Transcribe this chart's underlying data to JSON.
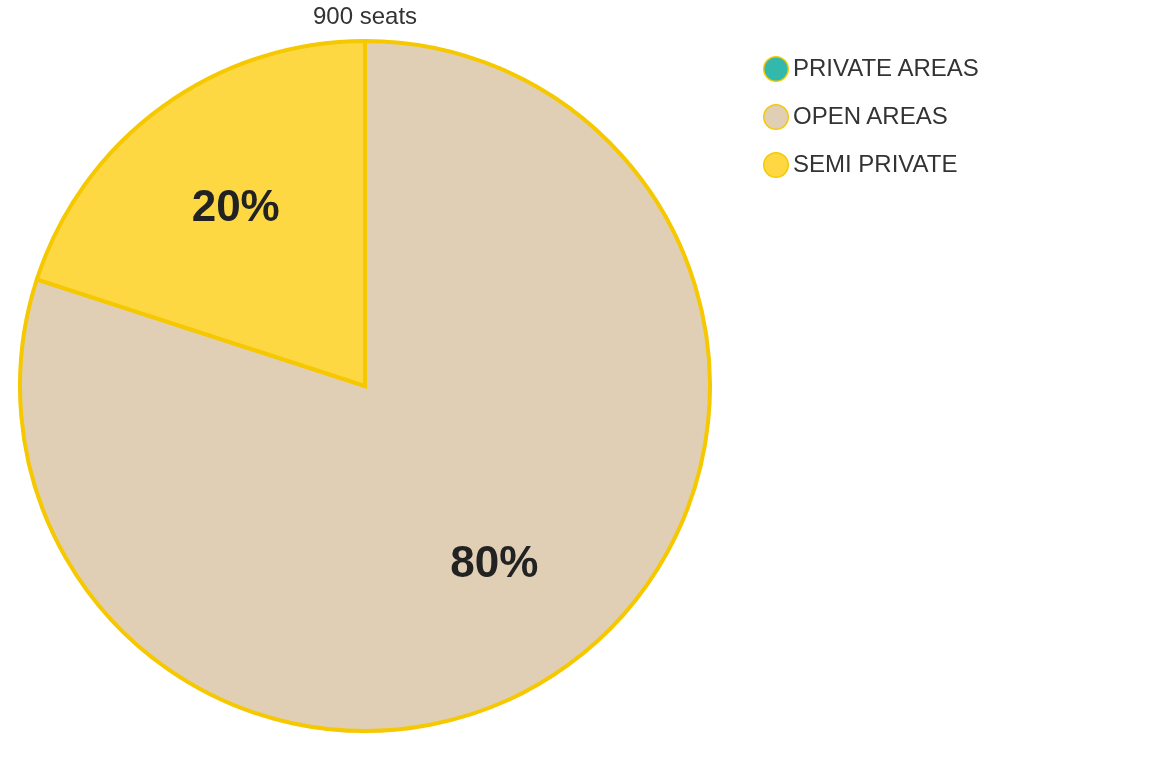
{
  "chart_data": {
    "type": "pie",
    "title": "900 seats",
    "categories": [
      "PRIVATE AREAS",
      "OPEN AREAS",
      "SEMI PRIVATE"
    ],
    "values": [
      0,
      80,
      20
    ],
    "colors": [
      "#33b9ab",
      "#e0cfb5",
      "#fdd843"
    ],
    "value_labels": [
      null,
      "80%",
      "20%"
    ],
    "legend": "right"
  }
}
